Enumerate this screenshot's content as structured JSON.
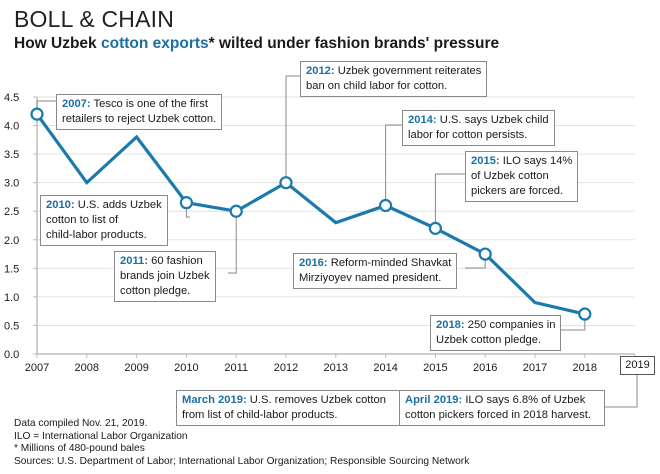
{
  "header": {
    "title": "BOLL & CHAIN",
    "subtitle_pre": "How Uzbek ",
    "subtitle_highlight": "cotton exports",
    "subtitle_post": "* wilted under fashion brands' pressure"
  },
  "colors": {
    "line": "#1a7aac",
    "highlight_text": "#1c6fa3",
    "grid": "#e2e2e2",
    "axis": "#bdbdbd",
    "leader": "#8a8a8a"
  },
  "chart_data": {
    "type": "line",
    "title": "How Uzbek cotton exports* wilted under fashion brands' pressure",
    "xlabel": "",
    "ylabel": "Millions of 480-pound bales",
    "x": [
      2007,
      2008,
      2009,
      2010,
      2011,
      2012,
      2013,
      2014,
      2015,
      2016,
      2017,
      2018
    ],
    "x_ticks": [
      "2007",
      "2008",
      "2009",
      "2010",
      "2011",
      "2012",
      "2013",
      "2014",
      "2015",
      "2016",
      "2017",
      "2018"
    ],
    "extra_x_tick": "2019",
    "y_ticks": [
      "0.0",
      "0.5",
      "1.0",
      "1.5",
      "2.0",
      "2.5",
      "3.0",
      "3.5",
      "4.0",
      "4.5"
    ],
    "ylim": [
      0,
      4.5
    ],
    "grid": true,
    "series": [
      {
        "name": "Uzbek cotton exports",
        "values": [
          4.2,
          3.0,
          3.8,
          2.65,
          2.5,
          3.0,
          2.3,
          2.6,
          2.2,
          1.75,
          0.9,
          0.7
        ]
      }
    ],
    "marked_years": [
      2007,
      2010,
      2011,
      2012,
      2014,
      2015,
      2016,
      2018
    ],
    "annotations": [
      {
        "year_label": "2007:",
        "text": [
          "Tesco is one of the first",
          "retailers to reject Uzbek cotton."
        ]
      },
      {
        "year_label": "2010:",
        "text": [
          "U.S. adds Uzbek",
          "cotton to list of",
          "child-labor products."
        ]
      },
      {
        "year_label": "2011:",
        "text": [
          "60 fashion",
          "brands join Uzbek",
          "cotton pledge."
        ]
      },
      {
        "year_label": "2012:",
        "text": [
          "Uzbek government reiterates",
          "ban on child labor for cotton."
        ]
      },
      {
        "year_label": "2014:",
        "text": [
          "U.S. says Uzbek child",
          "labor for cotton persists."
        ]
      },
      {
        "year_label": "2015:",
        "text": [
          "ILO says 14%",
          "of Uzbek cotton",
          "pickers are forced."
        ]
      },
      {
        "year_label": "2016:",
        "text": [
          "Reform-minded Shavkat",
          "Mirziyoyev named president."
        ]
      },
      {
        "year_label": "2018:",
        "text": [
          "250 companies in",
          "Uzbek cotton pledge."
        ]
      },
      {
        "year_label": "March 2019:",
        "text": [
          "U.S. removes Uzbek cotton",
          "from list of child-labor products."
        ]
      },
      {
        "year_label": "April 2019:",
        "text": [
          "ILO says 6.8% of Uzbek",
          "cotton pickers forced in 2018 harvest."
        ]
      }
    ]
  },
  "footer": {
    "lines": [
      "Data compiled Nov. 21, 2019.",
      "ILO = International Labor Organization",
      "* Millions of 480-pound bales",
      "Sources: U.S. Department of Labor; International Labor Organization; Responsible Sourcing Network"
    ]
  }
}
